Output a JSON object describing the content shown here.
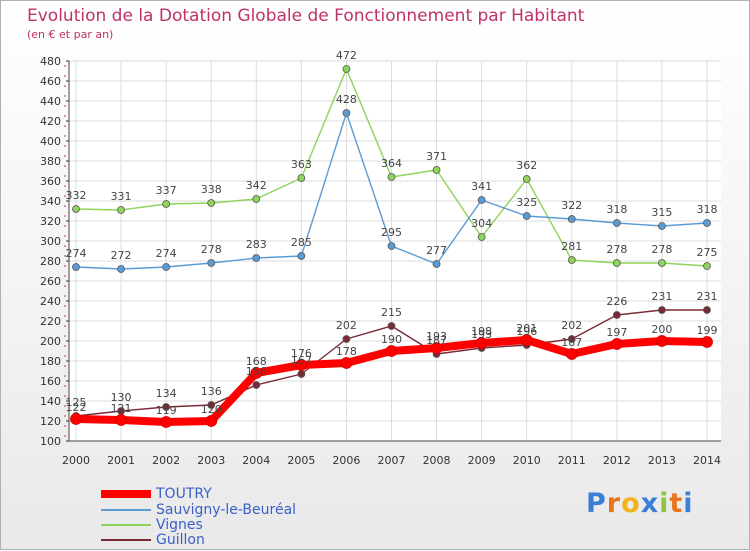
{
  "chart_data": {
    "type": "line",
    "title": "Evolution de la Dotation Globale de Fonctionnement par Habitant",
    "subtitle": "(en € et par an)",
    "xlabel": "",
    "ylabel": "",
    "ylim": [
      100,
      480
    ],
    "yticks": [
      100,
      120,
      140,
      160,
      180,
      200,
      220,
      240,
      260,
      280,
      300,
      320,
      340,
      360,
      380,
      400,
      420,
      440,
      460,
      480
    ],
    "categories": [
      "2000",
      "2001",
      "2002",
      "2003",
      "2004",
      "2005",
      "2006",
      "2007",
      "2008",
      "2009",
      "2010",
      "2011",
      "2012",
      "2013",
      "2014"
    ],
    "series": [
      {
        "name": "TOUTRY",
        "color": "#ff0000",
        "values": [
          122,
          121,
          119,
          120,
          168,
          176,
          178,
          190,
          193,
          198,
          201,
          187,
          197,
          200,
          199
        ],
        "labels": [
          "122",
          "121",
          "119",
          "120",
          "168",
          "176",
          "178",
          "190",
          "193",
          "198",
          "201",
          "187",
          "197",
          "200",
          "199"
        ]
      },
      {
        "name": "Sauvigny-le-Beuréal",
        "color": "#5b9bd5",
        "values": [
          274,
          272,
          274,
          278,
          283,
          285,
          428,
          295,
          277,
          341,
          325,
          322,
          318,
          315,
          318
        ],
        "labels": [
          "274",
          "272",
          "274",
          "278",
          "283",
          "285",
          "428",
          "295",
          "277",
          "341",
          "325",
          "322",
          "318",
          "315",
          "318"
        ]
      },
      {
        "name": "Vignes",
        "color": "#8ed35a",
        "values": [
          332,
          331,
          337,
          338,
          342,
          363,
          472,
          364,
          371,
          304,
          362,
          281,
          278,
          278,
          275
        ],
        "labels": [
          "332",
          "331",
          "337",
          "338",
          "342",
          "363",
          "472",
          "364",
          "371",
          "304",
          "362",
          "281",
          "278",
          "278",
          "275"
        ]
      },
      {
        "name": "Guillon",
        "color": "#7a2a36",
        "values": [
          125,
          130,
          134,
          136,
          156,
          167,
          202,
          215,
          187,
          193,
          196,
          202,
          226,
          231,
          231
        ],
        "labels": [
          "125",
          "130",
          "134",
          "136",
          "156",
          "167",
          "202",
          "215",
          "187",
          "193",
          "196",
          "202",
          "226",
          "231",
          "231"
        ]
      }
    ]
  },
  "logo": {
    "text": "Proxiti",
    "letters": [
      "P",
      "r",
      "o",
      "x",
      "i",
      "t",
      "i"
    ],
    "colors": [
      "#3a7fd5",
      "#e8741c",
      "#f2b31b",
      "#3a7fd5",
      "#8cc63f",
      "#e8741c",
      "#3a7fd5"
    ]
  }
}
